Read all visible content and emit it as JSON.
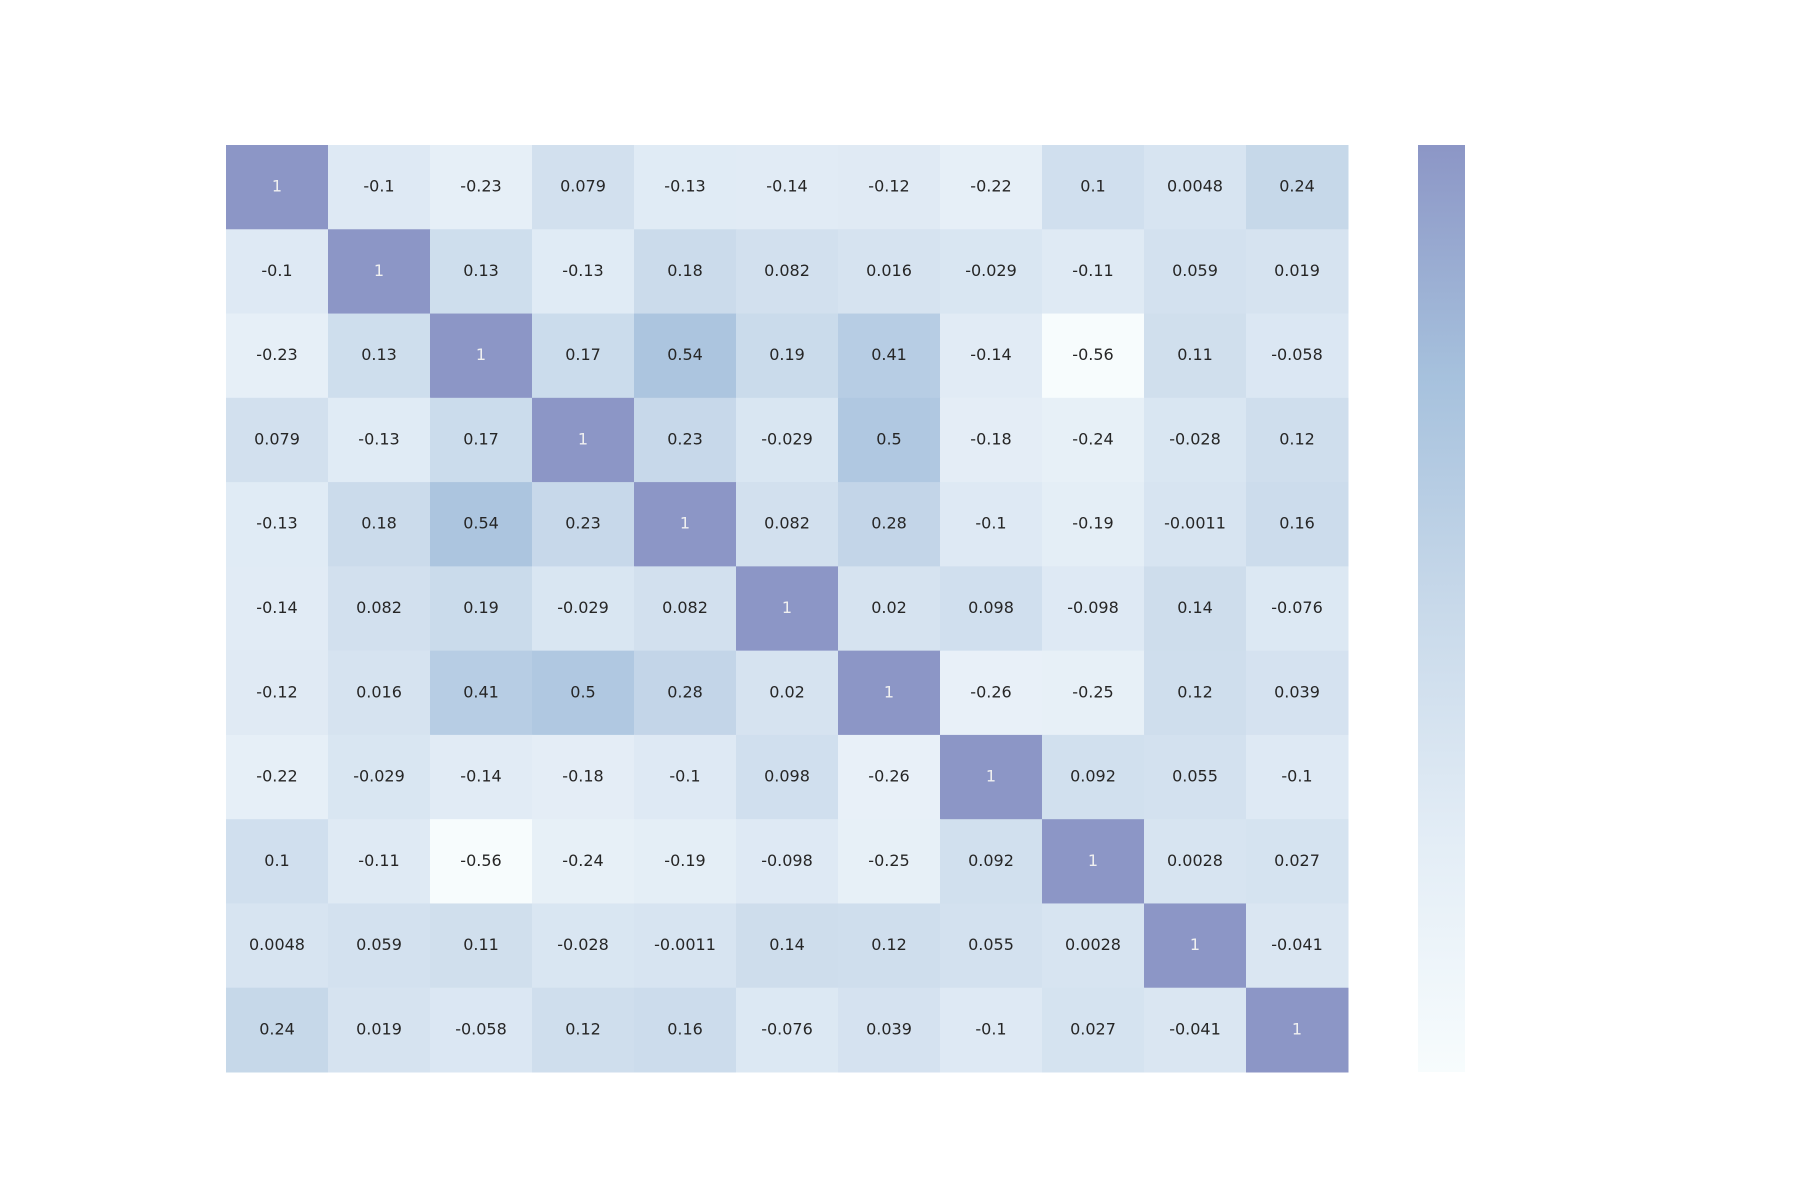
{
  "chart_data": {
    "type": "heatmap",
    "title": "",
    "xlabel": "",
    "ylabel": "",
    "vmin": -0.56,
    "vmax": 1,
    "colorbar": true,
    "colorbar_ticks": [],
    "row_labels": [],
    "col_labels": [],
    "colors": {
      "low": "#f7fcfd",
      "mid_low": "#d6e3ef",
      "mid": "#b8cde3",
      "mid_high": "#9dbbda",
      "high": "#8c96c6",
      "text_dark": "#262626",
      "text_light": "#f0f0f0"
    },
    "values": [
      [
        1,
        -0.1,
        -0.23,
        0.079,
        -0.13,
        -0.14,
        -0.12,
        -0.22,
        0.1,
        0.0048,
        0.24
      ],
      [
        -0.1,
        1,
        0.13,
        -0.13,
        0.18,
        0.082,
        0.016,
        -0.029,
        -0.11,
        0.059,
        0.019
      ],
      [
        -0.23,
        0.13,
        1,
        0.17,
        0.54,
        0.19,
        0.41,
        -0.14,
        -0.56,
        0.11,
        -0.058
      ],
      [
        0.079,
        -0.13,
        0.17,
        1,
        0.23,
        -0.029,
        0.5,
        -0.18,
        -0.24,
        -0.028,
        0.12
      ],
      [
        -0.13,
        0.18,
        0.54,
        0.23,
        1,
        0.082,
        0.28,
        -0.1,
        -0.19,
        -0.0011,
        0.16
      ],
      [
        -0.14,
        0.082,
        0.19,
        -0.029,
        0.082,
        1,
        0.02,
        0.098,
        -0.098,
        0.14,
        -0.076
      ],
      [
        -0.12,
        0.016,
        0.41,
        0.5,
        0.28,
        0.02,
        1,
        -0.26,
        -0.25,
        0.12,
        0.039
      ],
      [
        -0.22,
        -0.029,
        -0.14,
        -0.18,
        -0.1,
        0.098,
        -0.26,
        1,
        0.092,
        0.055,
        -0.1
      ],
      [
        0.1,
        -0.11,
        -0.56,
        -0.24,
        -0.19,
        -0.098,
        -0.25,
        0.092,
        1,
        0.0028,
        0.027
      ],
      [
        0.0048,
        0.059,
        0.11,
        -0.028,
        -0.0011,
        0.14,
        0.12,
        0.055,
        0.0028,
        1,
        -0.041
      ],
      [
        0.24,
        0.019,
        -0.058,
        0.12,
        0.16,
        -0.076,
        0.039,
        -0.1,
        0.027,
        -0.041,
        1
      ]
    ]
  }
}
